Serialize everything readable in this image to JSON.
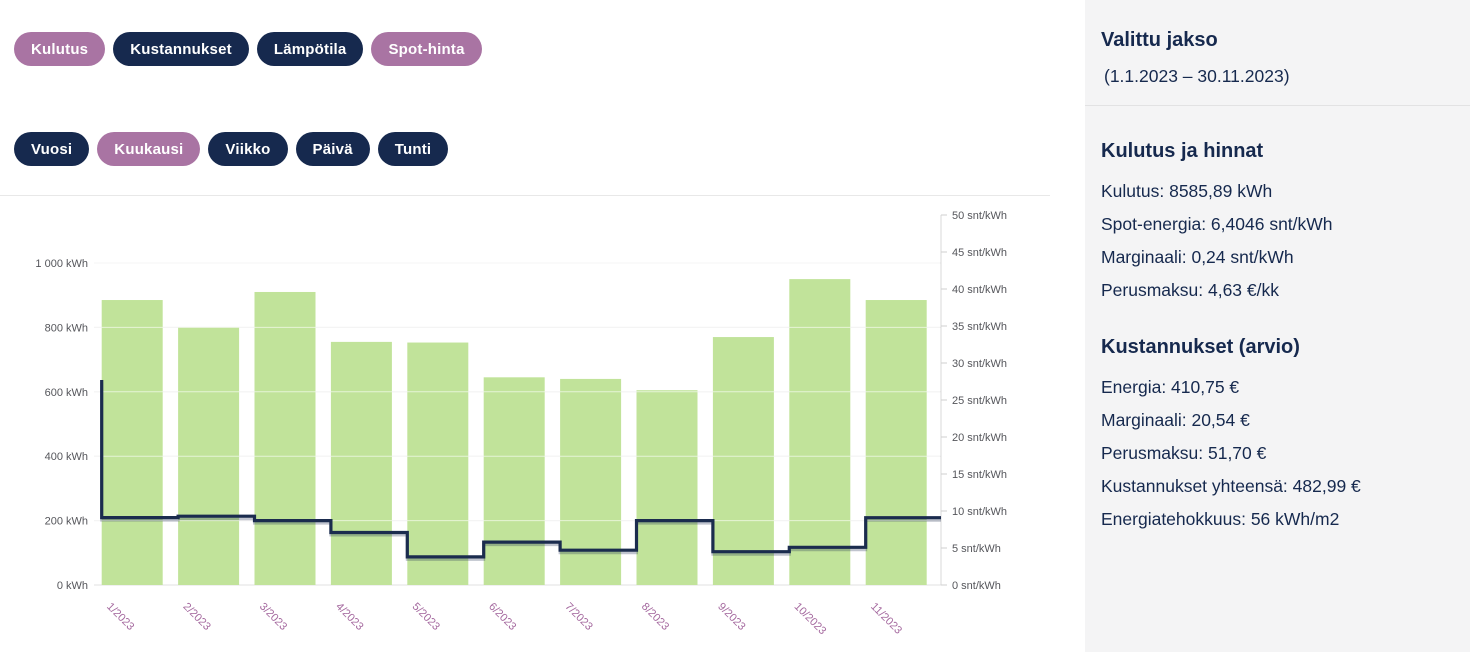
{
  "series_buttons": [
    {
      "label": "Kulutus",
      "active": true
    },
    {
      "label": "Kustannukset",
      "active": false
    },
    {
      "label": "Lämpötila",
      "active": false
    },
    {
      "label": "Spot-hinta",
      "active": true
    }
  ],
  "period_buttons": [
    {
      "label": "Vuosi",
      "active": false
    },
    {
      "label": "Kuukausi",
      "active": true
    },
    {
      "label": "Viikko",
      "active": false
    },
    {
      "label": "Päivä",
      "active": false
    },
    {
      "label": "Tunti",
      "active": false
    }
  ],
  "colors": {
    "pill_navy": "#16294e",
    "pill_active_purple": "#a974a3",
    "bar_green": "#c1e39a",
    "line_navy": "#1b2c4e",
    "x_label_purple": "#a4689e",
    "axis_label_gray": "#55565b",
    "gridline": "#e6e6e6",
    "sidebar_bg": "#f4f4f5",
    "text_navy": "#16294e"
  },
  "sidebar": {
    "selected_period": {
      "title": "Valittu jakso",
      "range": "(1.1.2023 – 30.11.2023)"
    },
    "consumption_prices": {
      "title": "Kulutus ja hinnat",
      "rows": [
        "Kulutus: 8585,89 kWh",
        "Spot-energia: 6,4046 snt/kWh",
        "Marginaali: 0,24 snt/kWh",
        "Perusmaksu: 4,63 €/kk"
      ]
    },
    "costs": {
      "title": "Kustannukset (arvio)",
      "rows": [
        "Energia: 410,75 €",
        "Marginaali: 20,54 €",
        "Perusmaksu: 51,70 €",
        "Kustannukset yhteensä: 482,99 €",
        "Energiatehokkuus: 56 kWh/m2"
      ]
    }
  },
  "chart_data": {
    "type": "bar",
    "subtype": "bar-with-step-line-dual-axis",
    "categories": [
      "1/2023",
      "2/2023",
      "3/2023",
      "4/2023",
      "5/2023",
      "6/2023",
      "7/2023",
      "8/2023",
      "9/2023",
      "10/2023",
      "11/2023"
    ],
    "series": [
      {
        "name": "Kulutus",
        "type": "bar",
        "axis": "left",
        "unit": "kWh",
        "color": "#c1e39a",
        "values": [
          885,
          800,
          910,
          755,
          753,
          645,
          640,
          605,
          770,
          950,
          885
        ]
      },
      {
        "name": "Spot-hinta",
        "type": "step-line",
        "axis": "right",
        "unit": "snt/kWh",
        "color": "#1b2c4e",
        "lead_in_value": 27.7,
        "values": [
          9.1,
          9.3,
          8.7,
          7.1,
          3.8,
          5.8,
          4.7,
          8.7,
          4.5,
          5.1,
          9.1
        ]
      }
    ],
    "left_axis": {
      "min": 0,
      "max": 1000,
      "tick_step": 200,
      "unit": "kWh",
      "tick_labels": [
        "0 kWh",
        "200 kWh",
        "400 kWh",
        "600 kWh",
        "800 kWh",
        "1 000 kWh"
      ]
    },
    "right_axis": {
      "min": 0,
      "max": 50,
      "tick_step": 5,
      "unit": "snt/kWh",
      "tick_labels": [
        "0 snt/kWh",
        "5 snt/kWh",
        "10 snt/kWh",
        "15 snt/kWh",
        "20 snt/kWh",
        "25 snt/kWh",
        "30 snt/kWh",
        "35 snt/kWh",
        "40 snt/kWh",
        "45 snt/kWh",
        "50 snt/kWh"
      ]
    },
    "title": "",
    "legend": "none",
    "grid": "horizontal"
  }
}
